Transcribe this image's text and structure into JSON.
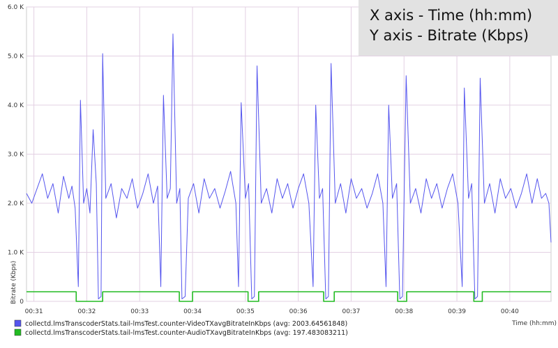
{
  "chart_data": {
    "type": "line",
    "xlabel": "Time (hh:mm)",
    "ylabel": "Bitrate (Kbps)",
    "x_range_minutes": [
      30.86,
      40.78
    ],
    "ylim": [
      0,
      6000
    ],
    "x_ticks": [
      "00:31",
      "00:32",
      "00:33",
      "00:34",
      "00:35",
      "00:36",
      "00:37",
      "00:38",
      "00:39",
      "00:40"
    ],
    "y_ticks": [
      {
        "value": 0,
        "label": "0"
      },
      {
        "value": 1000,
        "label": "1.0 K"
      },
      {
        "value": 2000,
        "label": "2.0 K"
      },
      {
        "value": 3000,
        "label": "3.0 K"
      },
      {
        "value": 4000,
        "label": "4.0 K"
      },
      {
        "value": 5000,
        "label": "5.0 K"
      },
      {
        "value": 6000,
        "label": "6.0 K"
      }
    ],
    "grid": true,
    "legend_position": "bottom-left",
    "series": [
      {
        "name": "collectd.lmsTranscoderStats.tail-lmsTest.counter-VideoTXavgBitrateInKbps (avg: 2003.64561848)",
        "color": "#5555ee",
        "points": [
          [
            30.86,
            2200
          ],
          [
            30.96,
            2000
          ],
          [
            31.06,
            2300
          ],
          [
            31.16,
            2600
          ],
          [
            31.26,
            2100
          ],
          [
            31.36,
            2400
          ],
          [
            31.46,
            1800
          ],
          [
            31.56,
            2550
          ],
          [
            31.66,
            2100
          ],
          [
            31.72,
            2350
          ],
          [
            31.78,
            1900
          ],
          [
            31.84,
            300
          ],
          [
            31.88,
            4100
          ],
          [
            31.94,
            2000
          ],
          [
            32.0,
            2300
          ],
          [
            32.06,
            1800
          ],
          [
            32.12,
            3500
          ],
          [
            32.18,
            2400
          ],
          [
            32.22,
            50
          ],
          [
            32.27,
            100
          ],
          [
            32.3,
            5050
          ],
          [
            32.36,
            2100
          ],
          [
            32.46,
            2400
          ],
          [
            32.56,
            1700
          ],
          [
            32.66,
            2300
          ],
          [
            32.76,
            2100
          ],
          [
            32.86,
            2500
          ],
          [
            32.96,
            1900
          ],
          [
            33.06,
            2200
          ],
          [
            33.16,
            2600
          ],
          [
            33.26,
            2000
          ],
          [
            33.34,
            2350
          ],
          [
            33.4,
            300
          ],
          [
            33.45,
            4200
          ],
          [
            33.52,
            2100
          ],
          [
            33.58,
            2300
          ],
          [
            33.63,
            5450
          ],
          [
            33.7,
            2000
          ],
          [
            33.76,
            2300
          ],
          [
            33.8,
            50
          ],
          [
            33.86,
            100
          ],
          [
            33.92,
            2100
          ],
          [
            34.02,
            2400
          ],
          [
            34.12,
            1800
          ],
          [
            34.22,
            2500
          ],
          [
            34.32,
            2100
          ],
          [
            34.42,
            2300
          ],
          [
            34.52,
            1900
          ],
          [
            34.62,
            2250
          ],
          [
            34.72,
            2650
          ],
          [
            34.82,
            2000
          ],
          [
            34.87,
            300
          ],
          [
            34.92,
            4050
          ],
          [
            35.0,
            2100
          ],
          [
            35.06,
            2400
          ],
          [
            35.12,
            50
          ],
          [
            35.17,
            100
          ],
          [
            35.22,
            4800
          ],
          [
            35.3,
            2000
          ],
          [
            35.4,
            2300
          ],
          [
            35.5,
            1800
          ],
          [
            35.6,
            2500
          ],
          [
            35.7,
            2100
          ],
          [
            35.8,
            2400
          ],
          [
            35.9,
            1900
          ],
          [
            36.0,
            2300
          ],
          [
            36.1,
            2600
          ],
          [
            36.2,
            2000
          ],
          [
            36.28,
            300
          ],
          [
            36.33,
            4000
          ],
          [
            36.4,
            2100
          ],
          [
            36.46,
            2300
          ],
          [
            36.52,
            50
          ],
          [
            36.57,
            100
          ],
          [
            36.62,
            4850
          ],
          [
            36.7,
            2000
          ],
          [
            36.8,
            2400
          ],
          [
            36.9,
            1800
          ],
          [
            37.0,
            2500
          ],
          [
            37.1,
            2100
          ],
          [
            37.2,
            2300
          ],
          [
            37.3,
            1900
          ],
          [
            37.4,
            2200
          ],
          [
            37.5,
            2600
          ],
          [
            37.6,
            2000
          ],
          [
            37.66,
            300
          ],
          [
            37.71,
            4000
          ],
          [
            37.78,
            2100
          ],
          [
            37.86,
            2400
          ],
          [
            37.92,
            50
          ],
          [
            37.97,
            100
          ],
          [
            38.04,
            4600
          ],
          [
            38.12,
            2000
          ],
          [
            38.22,
            2300
          ],
          [
            38.32,
            1800
          ],
          [
            38.42,
            2500
          ],
          [
            38.52,
            2100
          ],
          [
            38.62,
            2400
          ],
          [
            38.72,
            1900
          ],
          [
            38.82,
            2300
          ],
          [
            38.92,
            2600
          ],
          [
            39.02,
            2000
          ],
          [
            39.1,
            300
          ],
          [
            39.14,
            4350
          ],
          [
            39.22,
            2100
          ],
          [
            39.28,
            2400
          ],
          [
            39.34,
            50
          ],
          [
            39.39,
            100
          ],
          [
            39.44,
            4550
          ],
          [
            39.52,
            2000
          ],
          [
            39.62,
            2400
          ],
          [
            39.72,
            1800
          ],
          [
            39.82,
            2500
          ],
          [
            39.92,
            2100
          ],
          [
            40.02,
            2300
          ],
          [
            40.12,
            1900
          ],
          [
            40.22,
            2200
          ],
          [
            40.32,
            2600
          ],
          [
            40.42,
            2000
          ],
          [
            40.52,
            2500
          ],
          [
            40.6,
            2100
          ],
          [
            40.68,
            2200
          ],
          [
            40.74,
            2000
          ],
          [
            40.78,
            1200
          ]
        ]
      },
      {
        "name": "collectd.lmsTranscoderStats.tail-lmsTest.counter-AudioTXavgBitrateInKbps (avg: 197.483083211)",
        "color": "#22bb22",
        "points": [
          [
            30.86,
            195
          ],
          [
            31.8,
            195
          ],
          [
            31.8,
            0
          ],
          [
            32.3,
            0
          ],
          [
            32.3,
            195
          ],
          [
            33.75,
            195
          ],
          [
            33.75,
            0
          ],
          [
            34.0,
            0
          ],
          [
            34.0,
            195
          ],
          [
            35.05,
            195
          ],
          [
            35.05,
            0
          ],
          [
            35.25,
            0
          ],
          [
            35.25,
            195
          ],
          [
            36.48,
            195
          ],
          [
            36.48,
            0
          ],
          [
            36.68,
            0
          ],
          [
            36.68,
            195
          ],
          [
            37.88,
            195
          ],
          [
            37.88,
            0
          ],
          [
            38.05,
            0
          ],
          [
            38.05,
            195
          ],
          [
            39.32,
            195
          ],
          [
            39.32,
            0
          ],
          [
            39.48,
            0
          ],
          [
            39.48,
            195
          ],
          [
            40.78,
            195
          ]
        ]
      }
    ]
  },
  "info_box": {
    "line1": "X axis - Time (hh:mm)",
    "line2": "Y axis - Bitrate (Kbps)"
  }
}
